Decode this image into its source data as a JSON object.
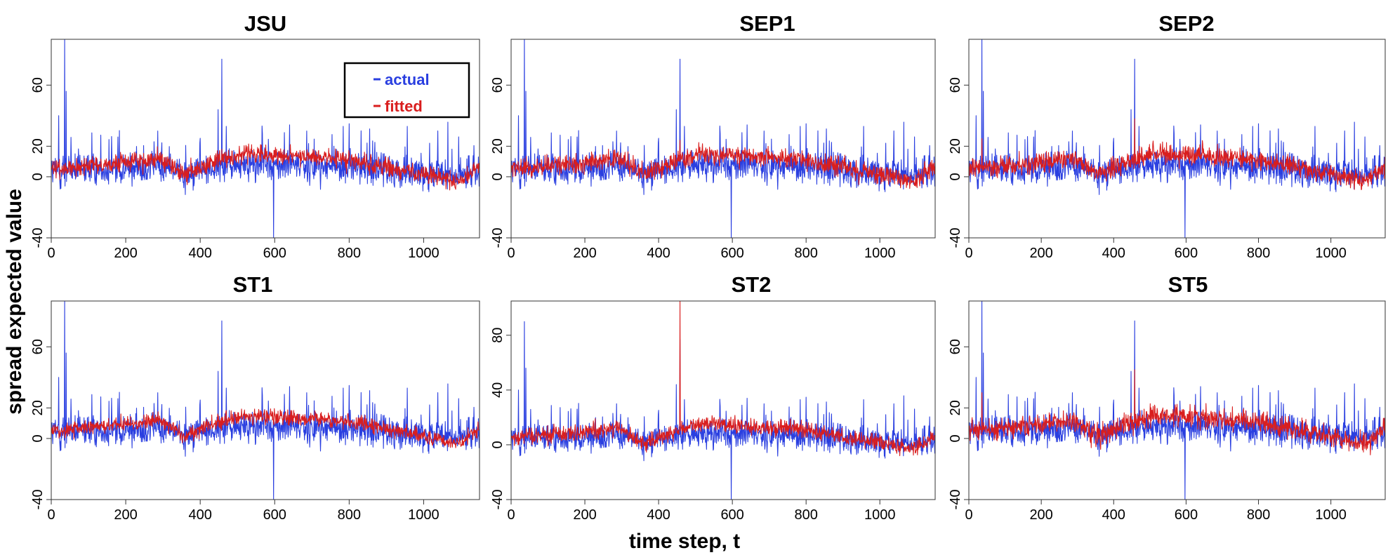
{
  "chart_data": {
    "type": "line",
    "figure_ylabel": "spread expected value",
    "figure_xlabel": "time step, t",
    "legend": {
      "placement": "top-right of first panel",
      "entries": [
        {
          "name": "actual",
          "color": "#2a3fe0"
        },
        {
          "name": "fitted",
          "color": "#d91e1e"
        }
      ]
    },
    "x_range": [
      0,
      1150
    ],
    "x_ticks": [
      0,
      200,
      400,
      600,
      800,
      1000
    ],
    "series_model": {
      "n_points": 1150,
      "actual": {
        "base_level": 3,
        "noise_sd": 9,
        "spikes": [
          [
            20,
            40
          ],
          [
            36,
            90
          ],
          [
            40,
            56
          ],
          [
            286,
            30
          ],
          [
            448,
            44
          ],
          [
            458,
            77
          ],
          [
            470,
            33
          ],
          [
            597,
            -40
          ],
          [
            640,
            34
          ],
          [
            686,
            30
          ],
          [
            784,
            33
          ],
          [
            956,
            33
          ]
        ]
      },
      "fitted": {
        "noise_sd": 5
      },
      "trend_knots": [
        [
          0,
          2
        ],
        [
          150,
          5
        ],
        [
          290,
          9
        ],
        [
          360,
          -2
        ],
        [
          440,
          7
        ],
        [
          520,
          12
        ],
        [
          700,
          10
        ],
        [
          800,
          8
        ],
        [
          900,
          3
        ],
        [
          1100,
          -6
        ],
        [
          1150,
          4
        ]
      ]
    },
    "panels": [
      {
        "title": "JSU",
        "ylim": [
          -40,
          90
        ],
        "yticks": [
          -40,
          0,
          20,
          60
        ],
        "fitted_scale": 1.0,
        "fitted_spikes": [
          [
            458,
            18
          ]
        ]
      },
      {
        "title": "SEP1",
        "ylim": [
          -40,
          90
        ],
        "yticks": [
          -40,
          0,
          20,
          60
        ],
        "fitted_scale": 1.05,
        "fitted_spikes": [
          [
            458,
            24
          ]
        ]
      },
      {
        "title": "SEP2",
        "ylim": [
          -40,
          90
        ],
        "yticks": [
          -40,
          0,
          20,
          60
        ],
        "fitted_scale": 1.1,
        "fitted_spikes": [
          [
            36,
            25
          ],
          [
            458,
            38
          ]
        ]
      },
      {
        "title": "ST1",
        "ylim": [
          -40,
          90
        ],
        "yticks": [
          -40,
          0,
          20,
          60
        ],
        "fitted_scale": 0.8,
        "fitted_spikes": [
          [
            458,
            14
          ]
        ]
      },
      {
        "title": "ST2",
        "ylim": [
          -40,
          105
        ],
        "yticks": [
          -40,
          0,
          40,
          80
        ],
        "fitted_scale": 1.0,
        "fitted_spikes": [
          [
            458,
            105
          ]
        ]
      },
      {
        "title": "ST5",
        "ylim": [
          -40,
          90
        ],
        "yticks": [
          -40,
          0,
          20,
          60
        ],
        "fitted_scale": 1.15,
        "fitted_spikes": [
          [
            36,
            30
          ],
          [
            458,
            45
          ]
        ]
      }
    ]
  }
}
